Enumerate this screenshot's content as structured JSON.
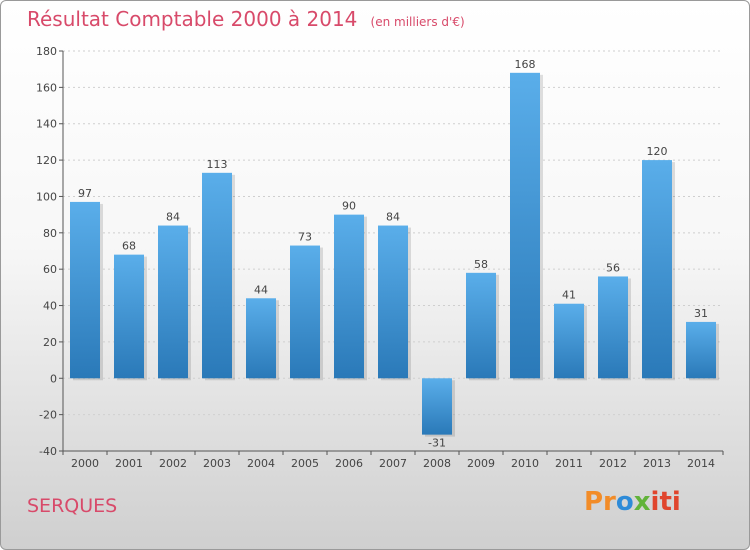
{
  "title": "Résultat Comptable 2000 à 2014",
  "subtitle": "(en milliers d'€)",
  "commune": "SERQUES",
  "logo": {
    "p1": "Pr",
    "p2": "o",
    "p3": "x",
    "p4": "iti"
  },
  "colors": {
    "bar_top": "#5aaeea",
    "bar_bottom": "#2a79b8",
    "title": "#d84a6a"
  },
  "chart_data": {
    "type": "bar",
    "title": "Résultat Comptable 2000 à 2014",
    "subtitle": "(en milliers d'€)",
    "categories": [
      "2000",
      "2001",
      "2002",
      "2003",
      "2004",
      "2005",
      "2006",
      "2007",
      "2008",
      "2009",
      "2010",
      "2011",
      "2012",
      "2013",
      "2014"
    ],
    "values": [
      97,
      68,
      84,
      113,
      44,
      73,
      90,
      84,
      -31,
      58,
      168,
      41,
      56,
      120,
      31
    ],
    "ylim": [
      -40,
      180
    ],
    "yticks": [
      -40,
      -20,
      0,
      20,
      40,
      60,
      80,
      100,
      120,
      140,
      160,
      180
    ],
    "grid": "horizontal dashed",
    "legend": "none"
  }
}
